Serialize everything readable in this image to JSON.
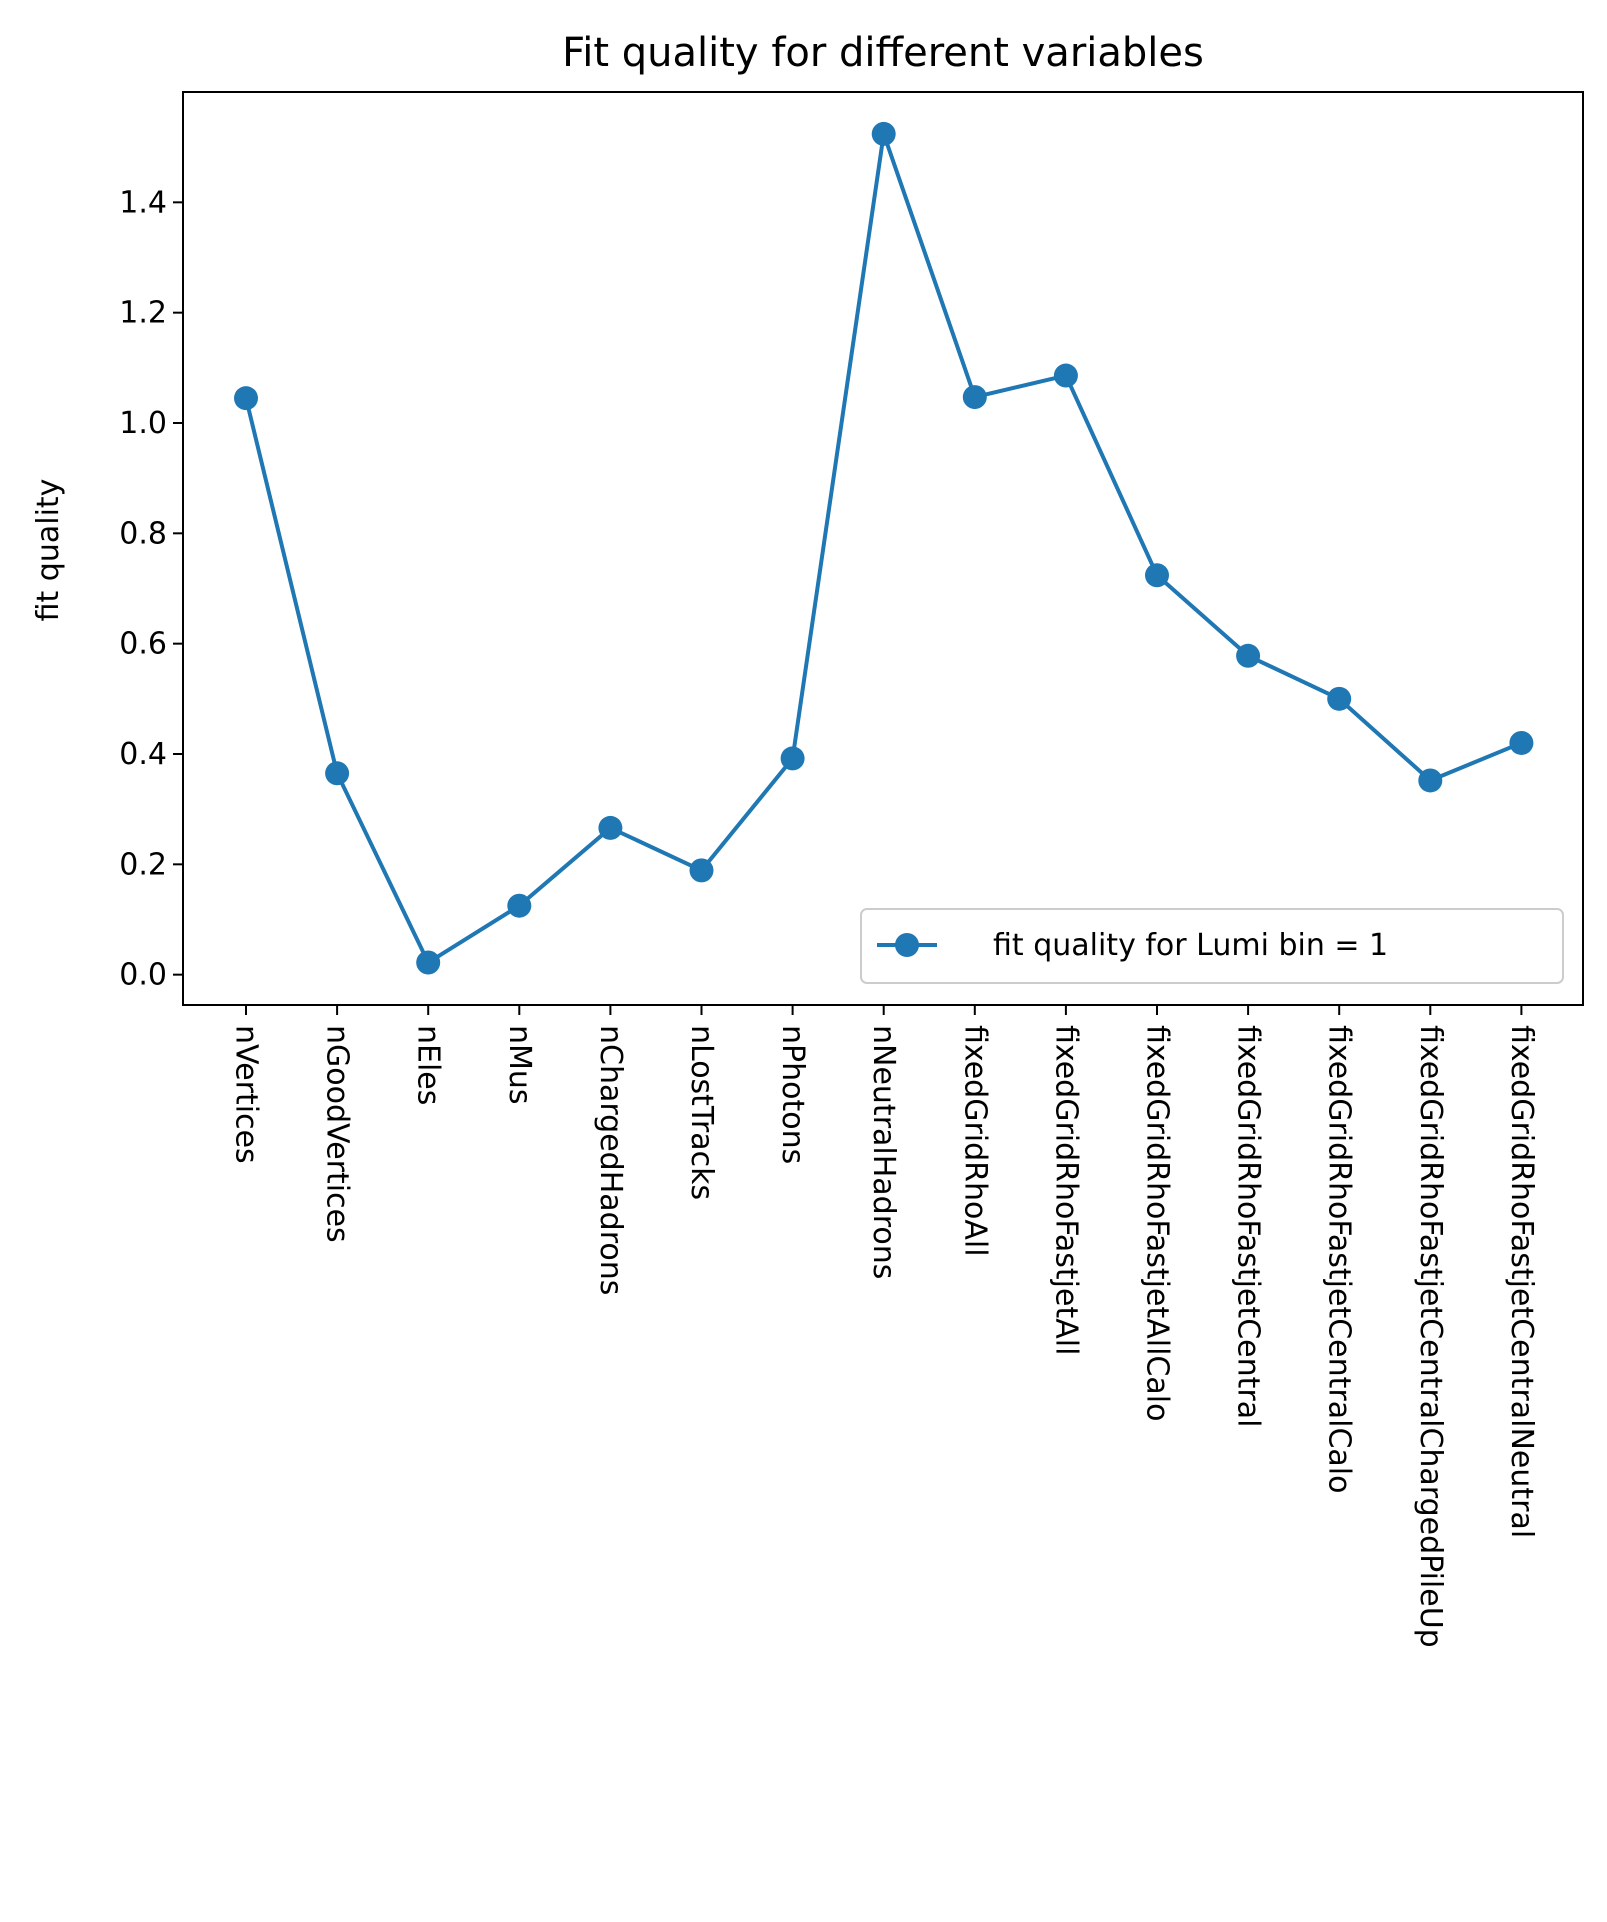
{
  "chart_data": {
    "type": "line",
    "title": "Fit quality for different variables",
    "xlabel": "",
    "ylabel": "fit quality",
    "categories": [
      "nVertices",
      "nGoodVertices",
      "nEles",
      "nMus",
      "nChargedHadrons",
      "nLostTracks",
      "nPhotons",
      "nNeutralHadrons",
      "fixedGridRhoAll",
      "fixedGridRhoFastjetAll",
      "fixedGridRhoFastjetAllCalo",
      "fixedGridRhoFastjetCentral",
      "fixedGridRhoFastjetCentralCalo",
      "fixedGridRhoFastjetCentralChargedPileUp",
      "fixedGridRhoFastjetCentralNeutral"
    ],
    "series": [
      {
        "name": "fit quality for Lumi bin = 1",
        "color": "#1f77b4",
        "marker": "circle",
        "values": [
          1.045,
          0.365,
          0.022,
          0.125,
          0.266,
          0.189,
          0.392,
          1.524,
          1.047,
          1.086,
          0.724,
          0.578,
          0.5,
          0.352,
          0.42
        ]
      }
    ],
    "yticks": [
      "0.0",
      "0.2",
      "0.4",
      "0.6",
      "0.8",
      "1.0",
      "1.2",
      "1.4"
    ],
    "ylim": [
      -0.055,
      1.6
    ],
    "grid": false,
    "legend": "lower-right"
  }
}
